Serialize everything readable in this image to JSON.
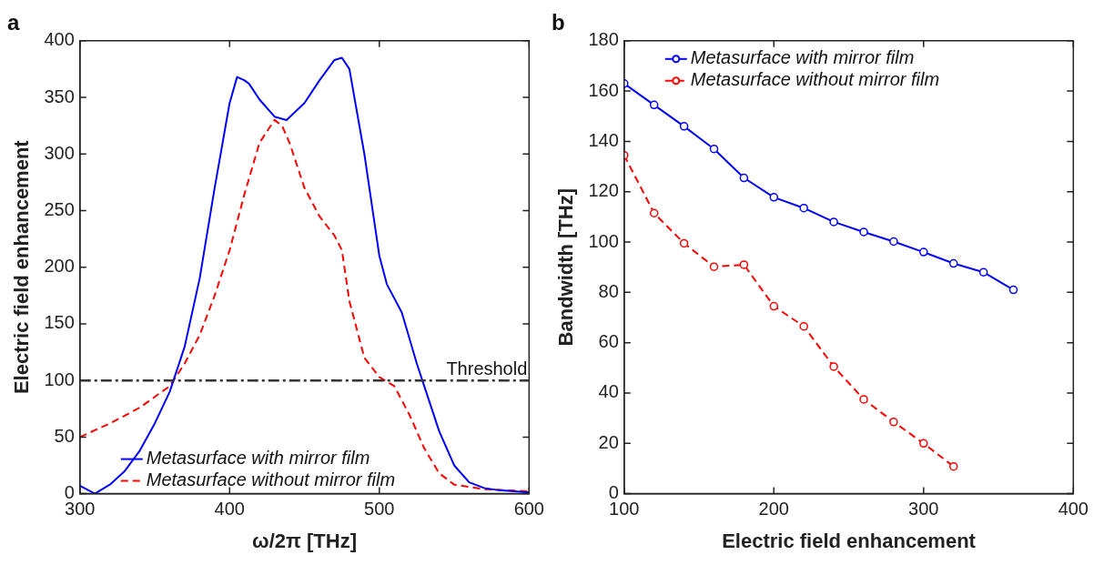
{
  "chart_data": [
    {
      "type": "line",
      "title": "a",
      "xlabel": "ω/2π [THz]",
      "ylabel": "Electric field enhancement",
      "xlim": [
        300,
        600
      ],
      "xticks": [
        300,
        400,
        500,
        600
      ],
      "ylim": [
        0,
        400
      ],
      "yticks": [
        0,
        50,
        100,
        150,
        200,
        250,
        300,
        350,
        400
      ],
      "grid": false,
      "legend": "bottom",
      "marker": "none",
      "ref_lines": [
        {
          "axis": "y",
          "value": 100,
          "label": "Threshold",
          "color": "#333333",
          "line_style": "dashdot"
        }
      ],
      "series": [
        {
          "name": "Metasurface with mirror film",
          "color": "#0000ff",
          "line_style": "solid",
          "x": [
            300,
            310,
            320,
            330,
            340,
            350,
            360,
            370,
            380,
            390,
            400,
            405,
            410,
            413,
            420,
            430,
            438,
            450,
            460,
            470,
            475,
            480,
            490,
            500,
            505,
            515,
            525,
            530,
            540,
            550,
            560,
            570,
            580,
            600
          ],
          "values": [
            7,
            0,
            8,
            20,
            38,
            62,
            90,
            130,
            190,
            270,
            345,
            368,
            365,
            362,
            348,
            333,
            330,
            345,
            365,
            383,
            385,
            375,
            300,
            210,
            185,
            160,
            115,
            95,
            55,
            25,
            10,
            5,
            3,
            1
          ]
        },
        {
          "name": "Metasurface without mirror film",
          "color": "#ff0000",
          "line_style": "dashed",
          "x": [
            300,
            320,
            340,
            360,
            370,
            380,
            390,
            400,
            410,
            420,
            430,
            435,
            440,
            450,
            460,
            470,
            475,
            480,
            490,
            500,
            510,
            520,
            530,
            540,
            550,
            570,
            600
          ],
          "values": [
            50,
            62,
            76,
            95,
            115,
            140,
            175,
            215,
            265,
            310,
            330,
            325,
            310,
            270,
            245,
            228,
            215,
            170,
            120,
            103,
            95,
            70,
            40,
            18,
            8,
            4,
            2
          ]
        }
      ]
    },
    {
      "type": "line",
      "title": "b",
      "xlabel": "Electric field enhancement",
      "ylabel": "Bandwidth [THz]",
      "xlim": [
        100,
        400
      ],
      "xticks": [
        100,
        200,
        300,
        400
      ],
      "ylim": [
        0,
        180
      ],
      "yticks": [
        0,
        20,
        40,
        60,
        80,
        100,
        120,
        140,
        160,
        180
      ],
      "grid": false,
      "legend": "top",
      "marker": "circle",
      "series": [
        {
          "name": "Metasurface with mirror film",
          "color": "#0000ff",
          "line_style": "solid",
          "x": [
            100,
            120,
            140,
            160,
            180,
            200,
            220,
            240,
            260,
            280,
            300,
            320,
            340,
            360
          ],
          "values": [
            163,
            154.5,
            146,
            137,
            125.5,
            117.8,
            113.5,
            108,
            104,
            100.2,
            96,
            91.5,
            88,
            81
          ]
        },
        {
          "name": "Metasurface without mirror film",
          "color": "#ff0000",
          "line_style": "dashed",
          "x": [
            100,
            120,
            140,
            160,
            180,
            200,
            220,
            240,
            260,
            280,
            300,
            320
          ],
          "values": [
            134.5,
            111.5,
            99.5,
            90.2,
            91,
            74.5,
            66.5,
            50.5,
            37.5,
            28.5,
            20,
            10.8
          ]
        }
      ]
    }
  ]
}
